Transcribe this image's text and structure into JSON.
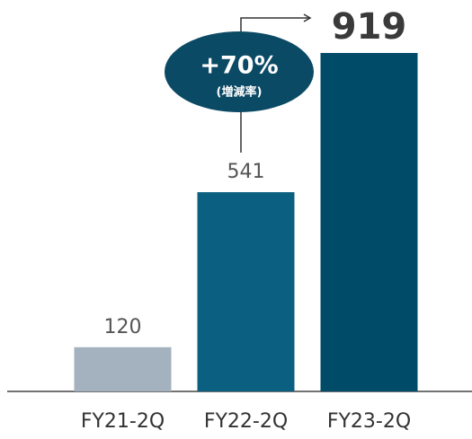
{
  "chart_data": {
    "type": "bar",
    "categories": [
      "FY21-2Q",
      "FY22-2Q",
      "FY23-2Q"
    ],
    "values": [
      120,
      541,
      919
    ],
    "colors": [
      "#a3b2be",
      "#0b5f80",
      "#004c68"
    ],
    "ylim": [
      0,
      919
    ],
    "annotations": [
      "+70%",
      "(増減率)"
    ]
  }
}
